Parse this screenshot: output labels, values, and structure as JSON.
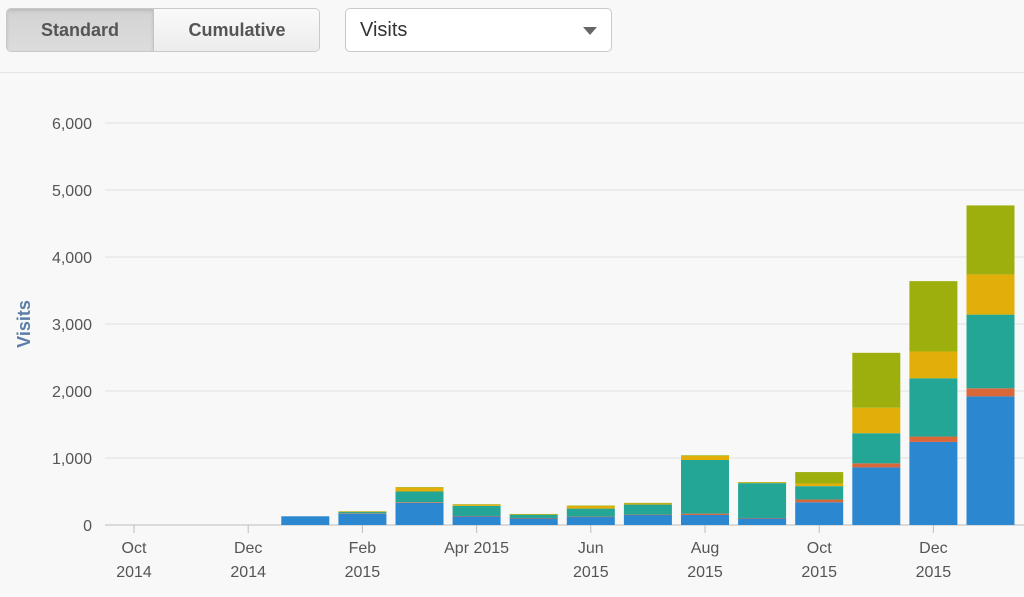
{
  "toolbar": {
    "standard_label": "Standard",
    "cumulative_label": "Cumulative",
    "metric_selected": "Visits"
  },
  "chart_data": {
    "type": "bar",
    "stacked": true,
    "ylabel": "Visits",
    "ylim": [
      0,
      6000
    ],
    "yticks": [
      0,
      1000,
      2000,
      3000,
      4000,
      5000,
      6000
    ],
    "ytick_labels": [
      "0",
      "1,000",
      "2,000",
      "3,000",
      "4,000",
      "5,000",
      "6,000"
    ],
    "grid": true,
    "categories": [
      "Oct 2014",
      "Nov 2014",
      "Dec 2014",
      "Jan 2015",
      "Feb 2015",
      "Mar 2015",
      "Apr 2015",
      "May 2015",
      "Jun 2015",
      "Jul 2015",
      "Aug 2015",
      "Sep 2015",
      "Oct 2015",
      "Nov 2015",
      "Dec 2015",
      "Jan 2016"
    ],
    "x_tick_labels": [
      {
        "month": "Oct",
        "year": "2014",
        "index": 0
      },
      {
        "month": "Dec",
        "year": "2014",
        "index": 2
      },
      {
        "month": "Feb",
        "year": "2015",
        "index": 4
      },
      {
        "month": "Apr 2015",
        "year": "",
        "index": 6
      },
      {
        "month": "Jun",
        "year": "2015",
        "index": 8
      },
      {
        "month": "Aug",
        "year": "2015",
        "index": 10
      },
      {
        "month": "Oct",
        "year": "2015",
        "index": 12
      },
      {
        "month": "Dec",
        "year": "2015",
        "index": 14
      }
    ],
    "series": [
      {
        "color": "#2a87d0",
        "values": [
          0,
          0,
          0,
          130,
          170,
          330,
          130,
          100,
          120,
          150,
          150,
          100,
          340,
          860,
          1240,
          1920
        ]
      },
      {
        "color": "#d9673a",
        "values": [
          0,
          0,
          0,
          0,
          5,
          10,
          5,
          5,
          5,
          5,
          20,
          5,
          40,
          60,
          80,
          120
        ]
      },
      {
        "color": "#23a696",
        "values": [
          0,
          0,
          0,
          0,
          20,
          160,
          150,
          50,
          120,
          150,
          800,
          520,
          200,
          450,
          870,
          1100
        ]
      },
      {
        "color": "#e2ae0a",
        "values": [
          0,
          0,
          0,
          0,
          5,
          60,
          20,
          5,
          40,
          15,
          60,
          10,
          40,
          380,
          400,
          600
        ]
      },
      {
        "color": "#9daf0c",
        "values": [
          0,
          0,
          0,
          0,
          5,
          5,
          5,
          5,
          5,
          10,
          10,
          5,
          170,
          820,
          1050,
          1030
        ]
      }
    ]
  }
}
